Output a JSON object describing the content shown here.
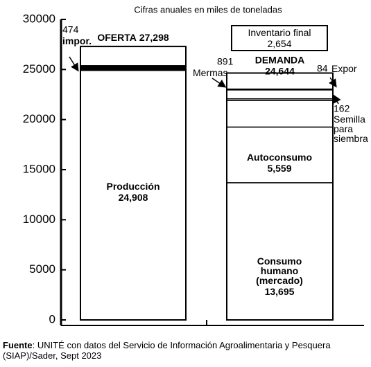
{
  "chart_data": {
    "type": "stacked_bar",
    "title": "Cifras anuales en miles de toneladas",
    "ylim": [
      0,
      30000
    ],
    "yticks": [
      0,
      5000,
      10000,
      15000,
      20000,
      25000,
      30000
    ],
    "bars": [
      {
        "name": "OFERTA",
        "total": 27298,
        "total_label": "27,298",
        "segments": [
          {
            "name": [
              "Producción"
            ],
            "value": 24908,
            "value_label": "24,908",
            "color": "#ffffff"
          },
          {
            "name": [
              "impor."
            ],
            "value": 474,
            "value_label": "474",
            "color": "#000000"
          }
        ]
      },
      {
        "name": "DEMANDA",
        "total": 24644,
        "total_label": "24,644",
        "segments": [
          {
            "name": [
              "Consumo",
              "humano",
              "(mercado)"
            ],
            "value": 13695,
            "value_label": "13,695",
            "color": "#ffffff"
          },
          {
            "name": [
              "Autoconsumo"
            ],
            "value": 5559,
            "value_label": "5,559",
            "color": "#ffffff"
          },
          {
            "name": [
              "Inventario final"
            ],
            "value": 2654,
            "value_label": "2,654",
            "color": "#ffffff"
          },
          {
            "name": [
              "Semilla",
              "para",
              "siembra"
            ],
            "value": 162,
            "value_label": "162",
            "color": "#ffffff"
          },
          {
            "name": [
              "Mermas"
            ],
            "value": 891,
            "value_label": "891",
            "color": "#ffffff"
          },
          {
            "name": [
              "Expor"
            ],
            "value": 84,
            "value_label": "84",
            "color": "#ffffff"
          }
        ]
      }
    ],
    "source_label": "Fuente",
    "source": ": UNITÉ con datos del Servicio de Información Agroalimentaria y Pesquera (SIAP)/Sader, Sept 2023"
  }
}
